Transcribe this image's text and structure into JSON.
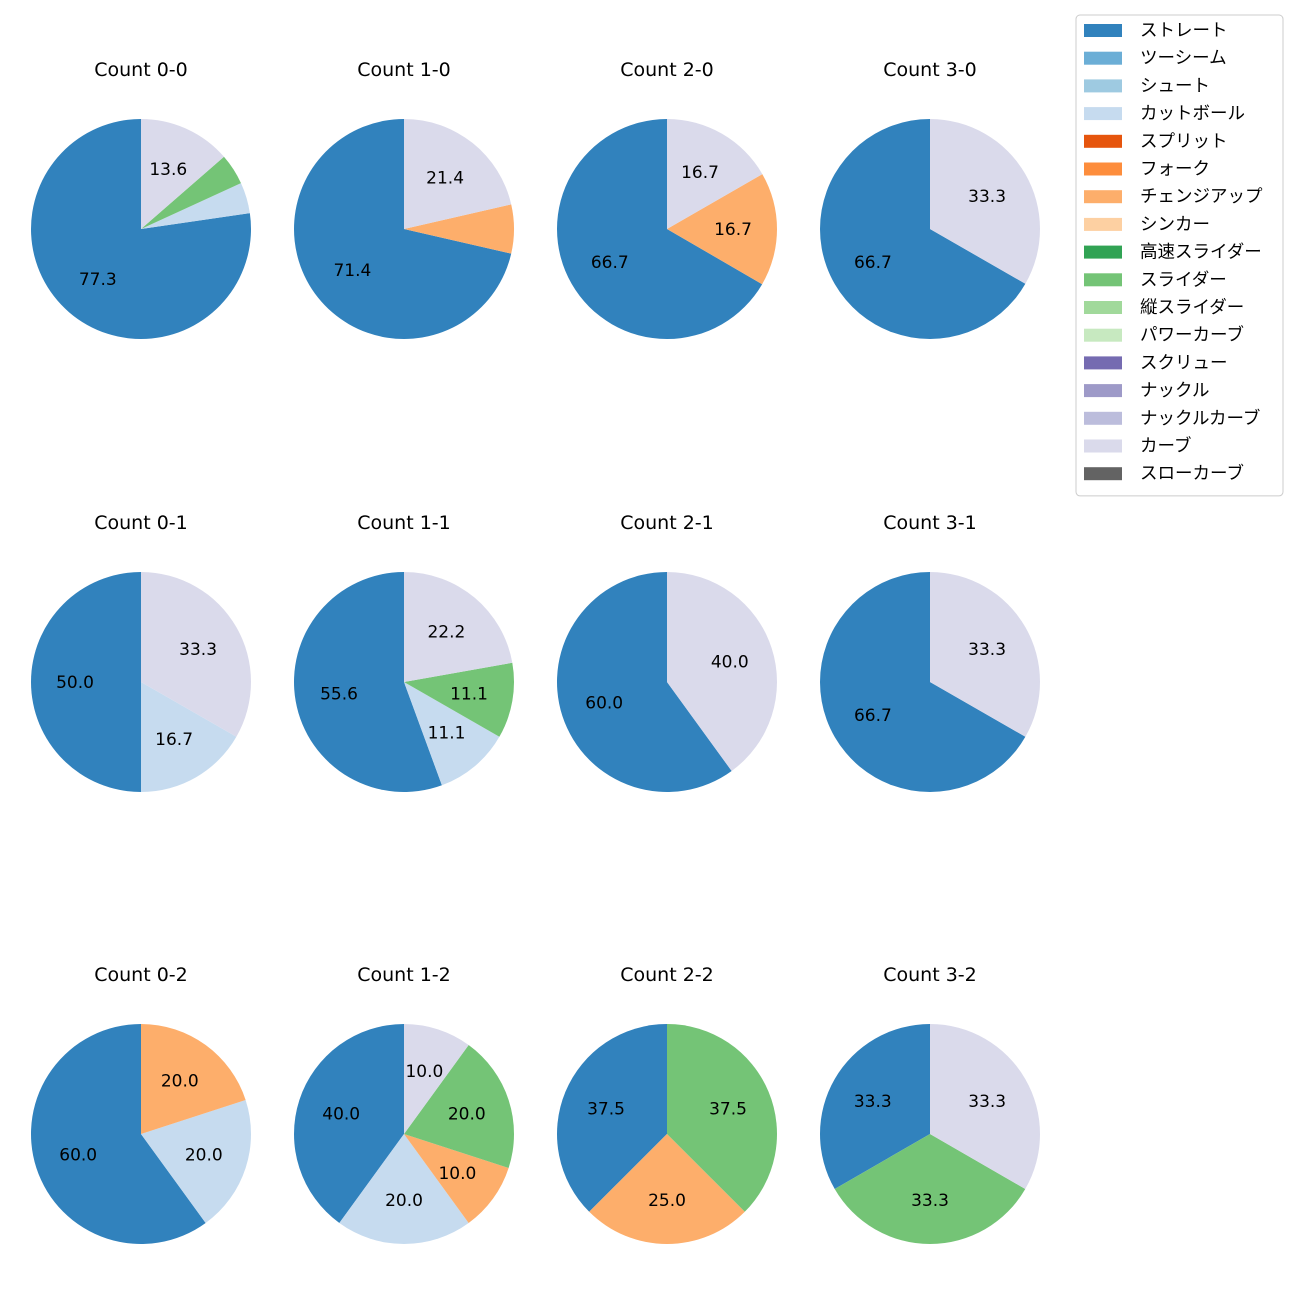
{
  "chart_data": {
    "type": "pie",
    "colors": {
      "ストレート": "#3182bd",
      "ツーシーム": "#6baed6",
      "シュート": "#9ecae1",
      "カットボール": "#c6dbef",
      "スプリット": "#e6550d",
      "フォーク": "#fd8d3c",
      "チェンジアップ": "#fdae6b",
      "シンカー": "#fdd0a2",
      "高速スライダー": "#31a354",
      "スライダー": "#74c476",
      "縦スライダー": "#a1d99b",
      "パワーカーブ": "#c7e9c0",
      "スクリュー": "#756bb1",
      "ナックル": "#9e9ac8",
      "ナックルカーブ": "#bcbddc",
      "カーブ": "#dadaeb",
      "スローカーブ": "#636363"
    },
    "legend": [
      "ストレート",
      "ツーシーム",
      "シュート",
      "カットボール",
      "スプリット",
      "フォーク",
      "チェンジアップ",
      "シンカー",
      "高速スライダー",
      "スライダー",
      "縦スライダー",
      "パワーカーブ",
      "スクリュー",
      "ナックル",
      "ナックルカーブ",
      "カーブ",
      "スローカーブ"
    ],
    "legend_position": "top-right",
    "pies": [
      {
        "title": "Count 0-0",
        "slices": [
          {
            "pitch": "ストレート",
            "value": 77.3,
            "label": "77.3"
          },
          {
            "pitch": "カットボール",
            "value": 4.55,
            "label": ""
          },
          {
            "pitch": "スライダー",
            "value": 4.55,
            "label": ""
          },
          {
            "pitch": "カーブ",
            "value": 13.6,
            "label": "13.6"
          }
        ]
      },
      {
        "title": "Count 1-0",
        "slices": [
          {
            "pitch": "ストレート",
            "value": 71.4,
            "label": "71.4"
          },
          {
            "pitch": "チェンジアップ",
            "value": 7.2,
            "label": ""
          },
          {
            "pitch": "カーブ",
            "value": 21.4,
            "label": "21.4"
          }
        ]
      },
      {
        "title": "Count 2-0",
        "slices": [
          {
            "pitch": "ストレート",
            "value": 66.7,
            "label": "66.7"
          },
          {
            "pitch": "チェンジアップ",
            "value": 16.7,
            "label": "16.7"
          },
          {
            "pitch": "カーブ",
            "value": 16.7,
            "label": "16.7"
          }
        ]
      },
      {
        "title": "Count 3-0",
        "slices": [
          {
            "pitch": "ストレート",
            "value": 66.7,
            "label": "66.7"
          },
          {
            "pitch": "カーブ",
            "value": 33.3,
            "label": "33.3"
          }
        ]
      },
      {
        "title": "Count 0-1",
        "slices": [
          {
            "pitch": "ストレート",
            "value": 50.0,
            "label": "50.0"
          },
          {
            "pitch": "カットボール",
            "value": 16.7,
            "label": "16.7"
          },
          {
            "pitch": "カーブ",
            "value": 33.3,
            "label": "33.3"
          }
        ]
      },
      {
        "title": "Count 1-1",
        "slices": [
          {
            "pitch": "ストレート",
            "value": 55.6,
            "label": "55.6"
          },
          {
            "pitch": "カットボール",
            "value": 11.1,
            "label": "11.1"
          },
          {
            "pitch": "スライダー",
            "value": 11.1,
            "label": "11.1"
          },
          {
            "pitch": "カーブ",
            "value": 22.2,
            "label": "22.2"
          }
        ]
      },
      {
        "title": "Count 2-1",
        "slices": [
          {
            "pitch": "ストレート",
            "value": 60.0,
            "label": "60.0"
          },
          {
            "pitch": "カーブ",
            "value": 40.0,
            "label": "40.0"
          }
        ]
      },
      {
        "title": "Count 3-1",
        "slices": [
          {
            "pitch": "ストレート",
            "value": 66.7,
            "label": "66.7"
          },
          {
            "pitch": "カーブ",
            "value": 33.3,
            "label": "33.3"
          }
        ]
      },
      {
        "title": "Count 0-2",
        "slices": [
          {
            "pitch": "ストレート",
            "value": 60.0,
            "label": "60.0"
          },
          {
            "pitch": "カットボール",
            "value": 20.0,
            "label": "20.0"
          },
          {
            "pitch": "チェンジアップ",
            "value": 20.0,
            "label": "20.0"
          }
        ]
      },
      {
        "title": "Count 1-2",
        "slices": [
          {
            "pitch": "ストレート",
            "value": 40.0,
            "label": "40.0"
          },
          {
            "pitch": "カットボール",
            "value": 20.0,
            "label": "20.0"
          },
          {
            "pitch": "チェンジアップ",
            "value": 10.0,
            "label": "10.0"
          },
          {
            "pitch": "スライダー",
            "value": 20.0,
            "label": "20.0"
          },
          {
            "pitch": "カーブ",
            "value": 10.0,
            "label": "10.0"
          }
        ]
      },
      {
        "title": "Count 2-2",
        "slices": [
          {
            "pitch": "ストレート",
            "value": 37.5,
            "label": "37.5"
          },
          {
            "pitch": "チェンジアップ",
            "value": 25.0,
            "label": "25.0"
          },
          {
            "pitch": "スライダー",
            "value": 37.5,
            "label": "37.5"
          }
        ]
      },
      {
        "title": "Count 3-2",
        "slices": [
          {
            "pitch": "ストレート",
            "value": 33.3,
            "label": "33.3"
          },
          {
            "pitch": "スライダー",
            "value": 33.3,
            "label": "33.3"
          },
          {
            "pitch": "カーブ",
            "value": 33.3,
            "label": "33.3"
          }
        ]
      }
    ]
  }
}
